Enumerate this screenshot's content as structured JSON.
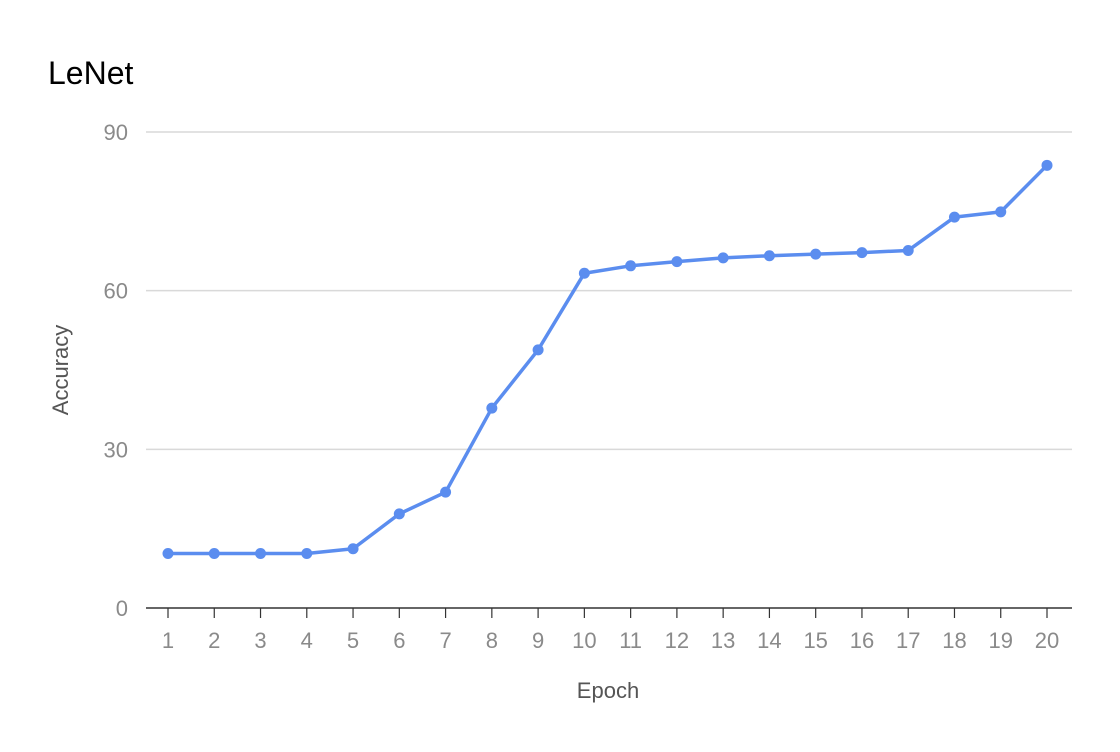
{
  "chart_data": {
    "type": "line",
    "title": "LeNet",
    "xlabel": "Epoch",
    "ylabel": "Accuracy",
    "categories": [
      "1",
      "2",
      "3",
      "4",
      "5",
      "6",
      "7",
      "8",
      "9",
      "10",
      "11",
      "12",
      "13",
      "14",
      "15",
      "16",
      "17",
      "18",
      "19",
      "20"
    ],
    "series": [
      {
        "values": [
          10.3,
          10.3,
          10.3,
          10.3,
          11.2,
          17.8,
          21.9,
          37.8,
          48.8,
          63.3,
          64.7,
          65.5,
          66.2,
          66.6,
          66.9,
          67.2,
          67.6,
          73.9,
          74.9,
          83.7
        ],
        "color": "#5b8def"
      }
    ],
    "ylim": [
      0,
      90
    ],
    "yticks": [
      0,
      30,
      60,
      90
    ],
    "grid": true,
    "colors": {
      "line": "#5b8def",
      "grid": "#d9d9d9",
      "axis": "#333333",
      "tick_text": "#8a8a8a",
      "axis_title": "#555555",
      "title": "#000000"
    }
  }
}
